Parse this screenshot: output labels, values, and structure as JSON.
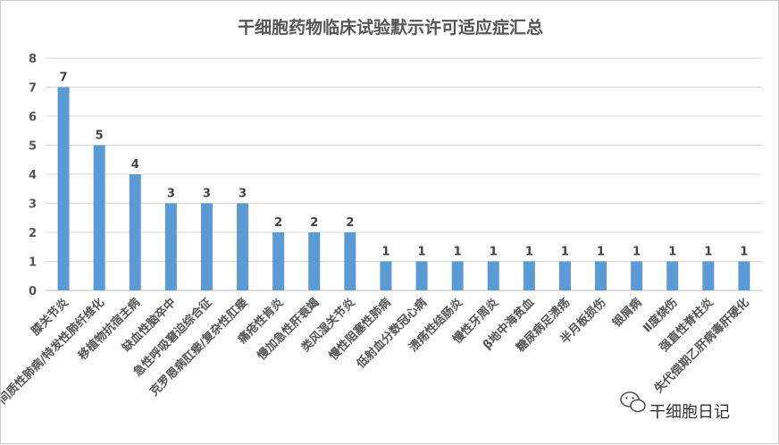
{
  "chart_data": {
    "type": "bar",
    "title": "干细胞药物临床试验默示许可适应症汇总",
    "xlabel": "",
    "ylabel": "",
    "ylim": [
      0,
      8
    ],
    "yticks": [
      "0",
      "1",
      "2",
      "3",
      "4",
      "5",
      "6",
      "7",
      "8"
    ],
    "grid": true,
    "legend": "none",
    "bar_color": "#5b9bd5",
    "categories": [
      "膝关节炎",
      "间质性肺病/特发性肺纤维化",
      "移植物抗宿主病",
      "缺血性脑卒中",
      "急性呼吸窘迫综合征",
      "克罗恩病肛瘘/复杂性肛瘘",
      "痛疮性肯炎",
      "慢加急性肝衰竭",
      "类风湿关节炎",
      "慢性阻塞性肺病",
      "低射血分数冠心病",
      "溃疡性结肠炎",
      "慢性牙周炎",
      "β地中海贫血",
      "糖尿病足溃疡",
      "半月板损伤",
      "银屑病",
      "Ⅱ度烧伤",
      "强直性脊柱炎",
      "失代偿期乙肝病毒肝硬化"
    ],
    "values": [
      7,
      5,
      4,
      3,
      3,
      3,
      2,
      2,
      2,
      1,
      1,
      1,
      1,
      1,
      1,
      1,
      1,
      1,
      1,
      1
    ]
  },
  "watermark": {
    "text": "干细胞日记",
    "icon": "wechat-icon"
  }
}
